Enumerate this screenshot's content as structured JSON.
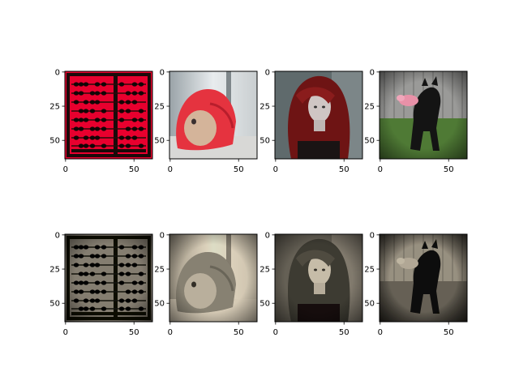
{
  "chart_data": {
    "type": "image-grid",
    "rows": 2,
    "cols": 4,
    "image_size": [
      64,
      64
    ],
    "xlim": [
      -0.5,
      63.5
    ],
    "ylim": [
      63.5,
      -0.5
    ],
    "x_ticks": [
      0,
      50
    ],
    "y_ticks": [
      0,
      25,
      50
    ],
    "x_tick_labels": [
      "0",
      "50"
    ],
    "y_tick_labels": [
      "0",
      "25",
      "50"
    ],
    "panels": [
      {
        "row": 0,
        "col": 0,
        "content": "red abacus",
        "tone": "color"
      },
      {
        "row": 0,
        "col": 1,
        "content": "doll in red knitted bonnet",
        "tone": "color"
      },
      {
        "row": 0,
        "col": 2,
        "content": "mannequin with red wig",
        "tone": "color"
      },
      {
        "row": 0,
        "col": 3,
        "content": "black dog carrying pink toy",
        "tone": "color"
      },
      {
        "row": 1,
        "col": 0,
        "content": "red abacus",
        "tone": "sepia"
      },
      {
        "row": 1,
        "col": 1,
        "content": "doll in red knitted bonnet",
        "tone": "sepia"
      },
      {
        "row": 1,
        "col": 2,
        "content": "mannequin with red wig",
        "tone": "sepia"
      },
      {
        "row": 1,
        "col": 3,
        "content": "black dog carrying pink toy",
        "tone": "sepia"
      }
    ]
  }
}
